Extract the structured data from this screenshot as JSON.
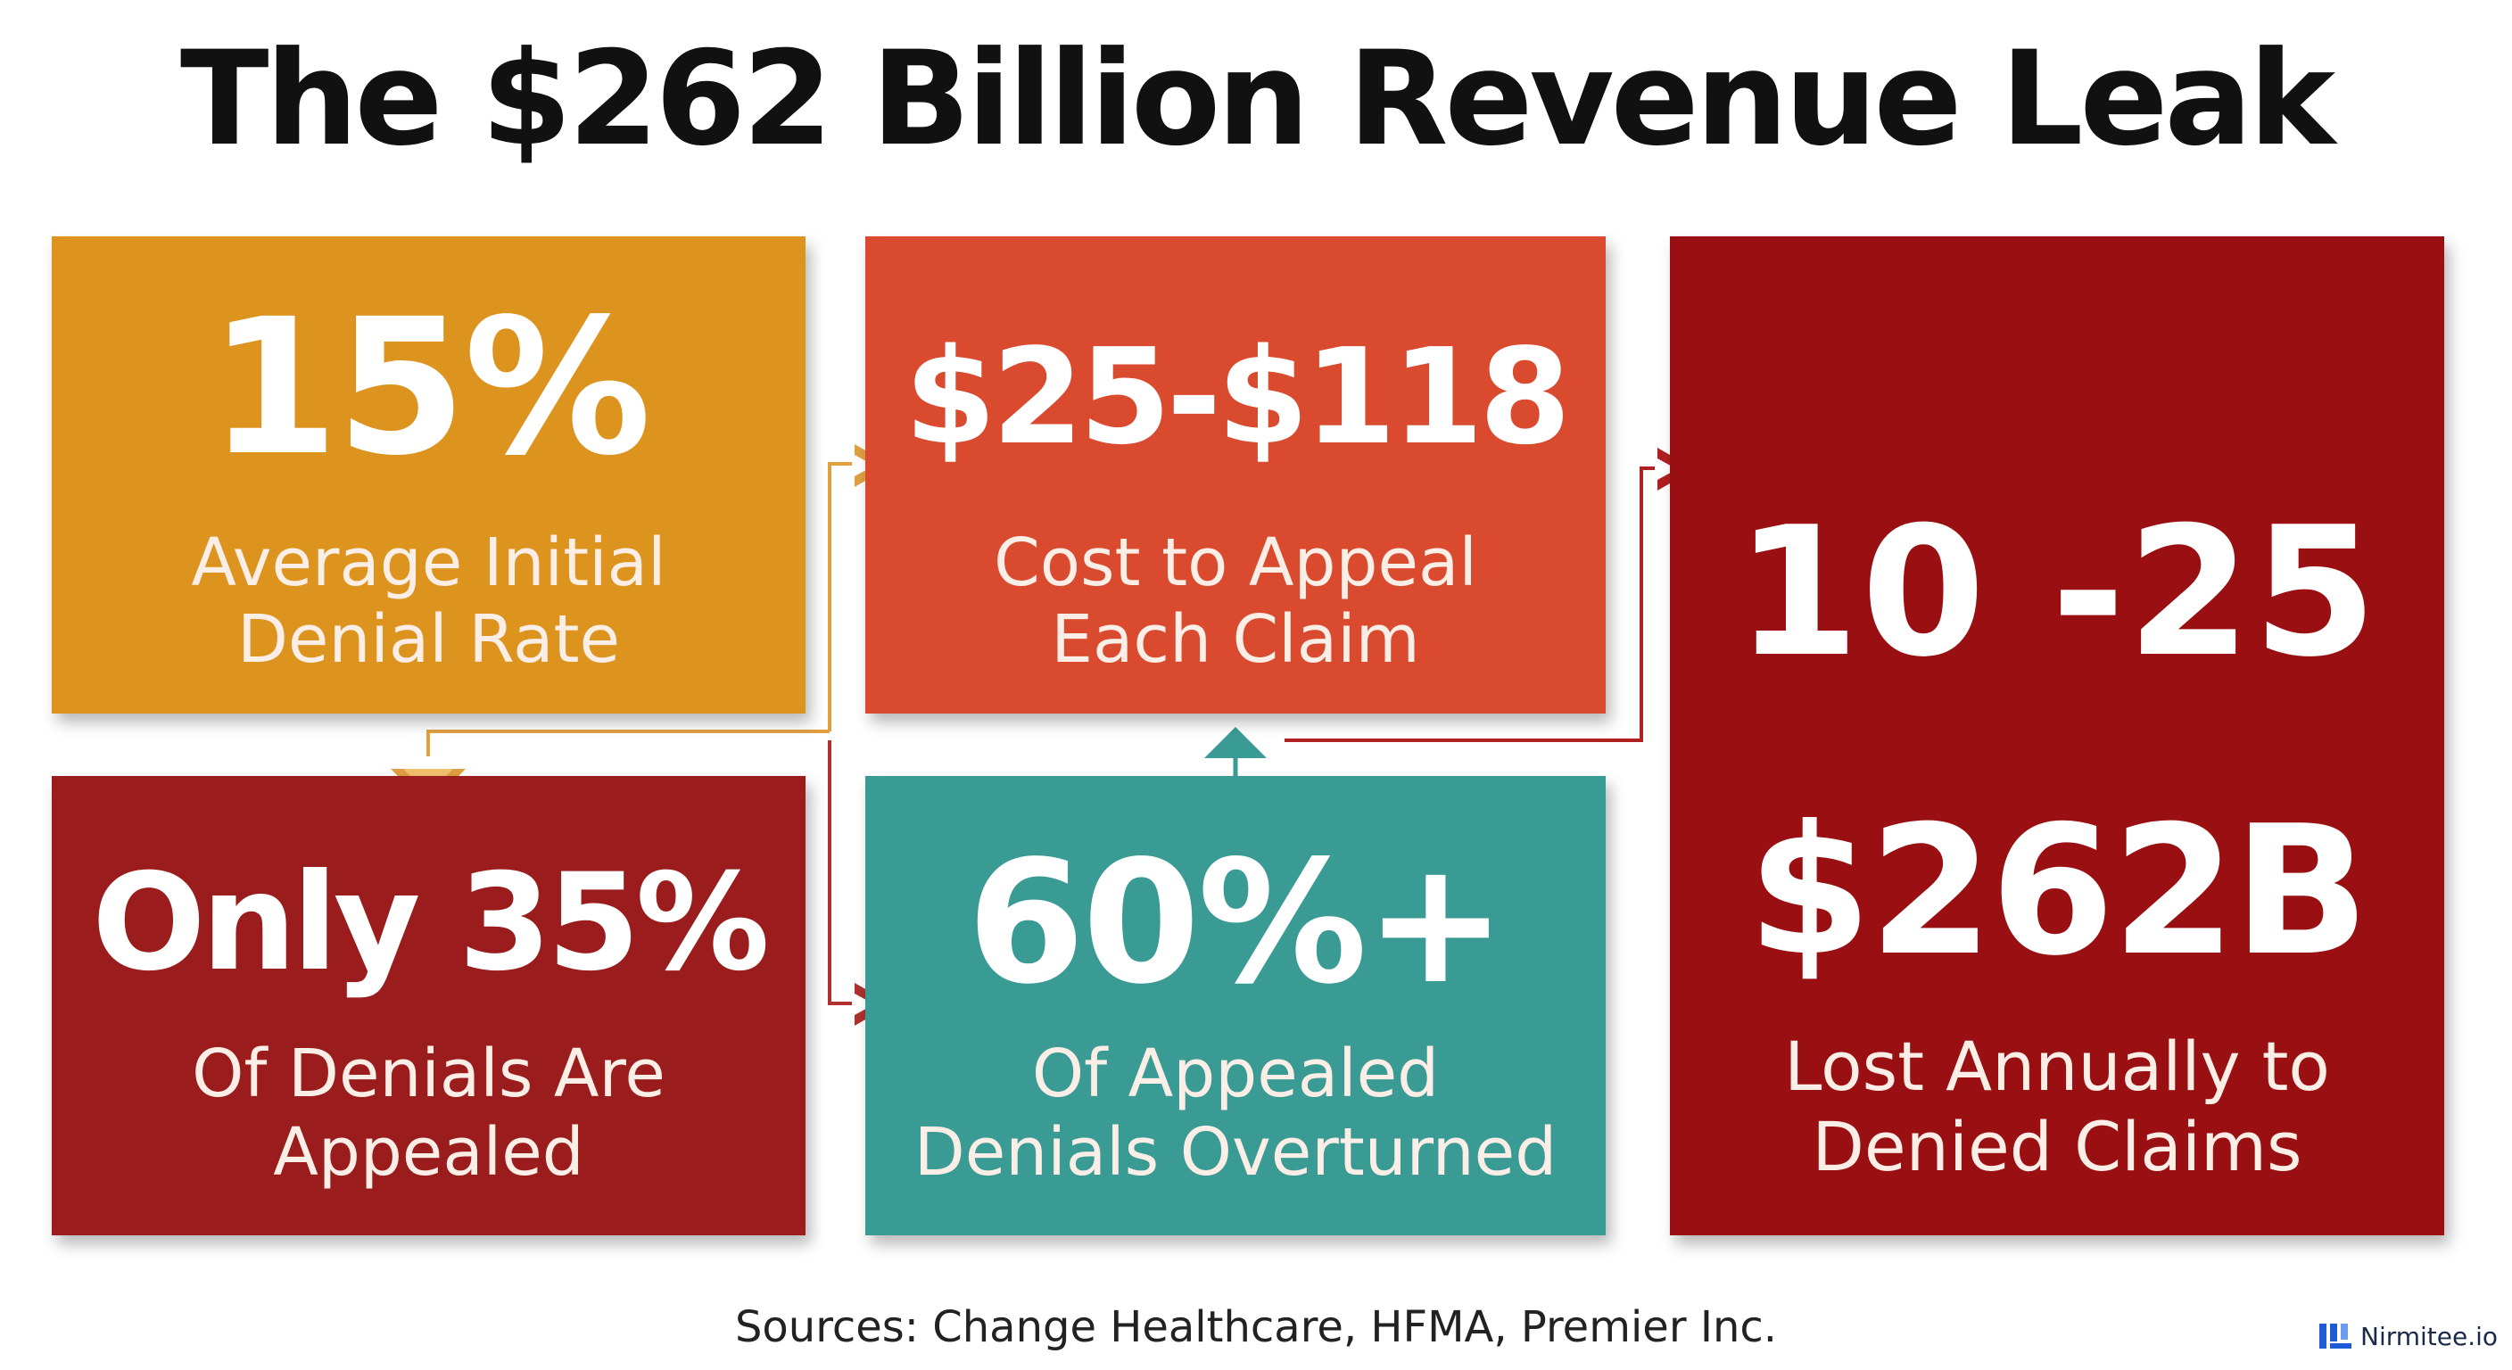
{
  "title": "The $262 Billion Revenue Leak",
  "cards": [
    {
      "stat": "15%",
      "label_line1": "Average Initial",
      "label_line2": "Denial Rate",
      "color": "#dd941f"
    },
    {
      "stat": "$25-$118",
      "label_line1": "Cost to Appeal",
      "label_line2": "Each Claim",
      "color": "#d94a2e"
    },
    {
      "stat": "Only 35%",
      "label_line1": "Of Denials Are",
      "label_line2": "Appealed",
      "color": "#9a1c1c"
    },
    {
      "stat": "60%+",
      "label_line1": "Of Appealed",
      "label_line2": "Denials Overturned",
      "color": "#3a9b95"
    },
    {
      "stat_top": "10 -25",
      "stat": "$262B",
      "label_line1": "Lost Annually to",
      "label_line2": "Denied Claims",
      "color": "#9a0f12"
    }
  ],
  "sources": "Sources: Change Healthcare, HFMA, Premier Inc.",
  "logo": {
    "text": "Nirmitee.io",
    "icon": "nirmitee-logo-icon",
    "color": "#1e5bd6"
  }
}
